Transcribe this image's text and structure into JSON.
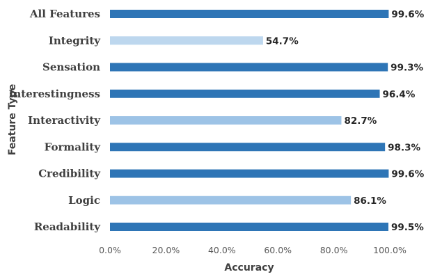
{
  "chart_data": {
    "type": "bar",
    "orientation": "horizontal",
    "title": "",
    "xlabel": "Accuracy",
    "ylabel": "Feature Type",
    "xlim": [
      0,
      100
    ],
    "x_ticks": [
      "0.0%",
      "20.0%",
      "40.0%",
      "60.0%",
      "80.0%",
      "100.0%"
    ],
    "grid": false,
    "legend": "none",
    "categories": [
      "All Features",
      "Integrity",
      "Sensation",
      "Interestingness",
      "Interactivity",
      "Formality",
      "Credibility",
      "Logic",
      "Readability"
    ],
    "values": [
      99.6,
      54.7,
      99.3,
      96.4,
      82.7,
      98.3,
      99.6,
      86.1,
      99.5
    ],
    "value_labels": [
      "99.6%",
      "54.7%",
      "99.3%",
      "96.4%",
      "82.7%",
      "98.3%",
      "99.6%",
      "86.1%",
      "99.5%"
    ],
    "bar_colors": [
      "#2E75B6",
      "#BDD7EE",
      "#2E75B6",
      "#2E75B6",
      "#9DC3E6",
      "#2E75B6",
      "#2E75B6",
      "#9DC3E6",
      "#2E75B6"
    ]
  }
}
